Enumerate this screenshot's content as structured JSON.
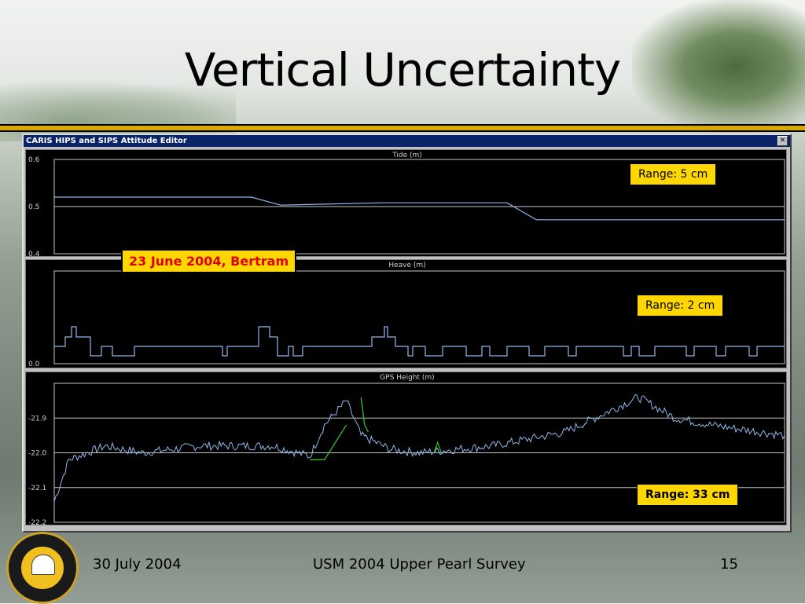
{
  "slide": {
    "title": "Vertical Uncertainty",
    "footer_date": "30 July 2004",
    "footer_center": "USM 2004 Upper Pearl Survey",
    "page_number": "15",
    "annotation_date": "23 June 2004, Bertram"
  },
  "window": {
    "title": "CARIS HIPS and SIPS Attitude Editor",
    "close_icon": "close-icon"
  },
  "panels": [
    {
      "id": "tide",
      "label": "Tide (m)",
      "ticks": [
        "0.6",
        "0.5",
        "0.4"
      ],
      "range_label": "Range: 5 cm"
    },
    {
      "id": "heave",
      "label": "Heave (m)",
      "ticks": [
        "0.0"
      ],
      "range_label": "Range: 2 cm"
    },
    {
      "id": "gps",
      "label": "GPS Height (m)",
      "ticks": [
        "-21.9",
        "-22.0",
        "-22.1",
        "-22.2"
      ],
      "range_label": "Range: 33 cm"
    }
  ],
  "chart_data": [
    {
      "type": "line",
      "xlabel": "",
      "ylabel": "Tide (m)",
      "ylim": [
        0.4,
        0.6
      ],
      "x": [
        0,
        0.27,
        0.31,
        0.45,
        0.62,
        0.66,
        1.0
      ],
      "values": [
        0.52,
        0.52,
        0.503,
        0.508,
        0.508,
        0.472,
        0.472
      ],
      "grid": true
    },
    {
      "type": "line",
      "ylabel": "Heave (m)",
      "ylim": [
        0.0,
        0.02
      ],
      "grid": true
    },
    {
      "type": "line",
      "ylabel": "GPS Height (m)",
      "ylim": [
        -22.2,
        -21.8
      ],
      "x": [
        0,
        0.02,
        0.07,
        0.12,
        0.2,
        0.3,
        0.35,
        0.37,
        0.4,
        0.42,
        0.46,
        0.5,
        0.6,
        0.65,
        0.7,
        0.8,
        0.85,
        0.9,
        1.0
      ],
      "values": [
        -22.14,
        -22.02,
        -21.98,
        -22.0,
        -21.98,
        -21.98,
        -22.01,
        -21.92,
        -21.85,
        -21.95,
        -21.99,
        -22.0,
        -21.98,
        -21.96,
        -21.94,
        -21.84,
        -21.9,
        -21.92,
        -21.95
      ],
      "grid": true
    }
  ],
  "colors": {
    "trace": "#8fb8e8",
    "highlight_trace": "#2cc02c",
    "grid": "#c8c8c8",
    "box": "#ffd700",
    "date_text": "#e00000"
  }
}
